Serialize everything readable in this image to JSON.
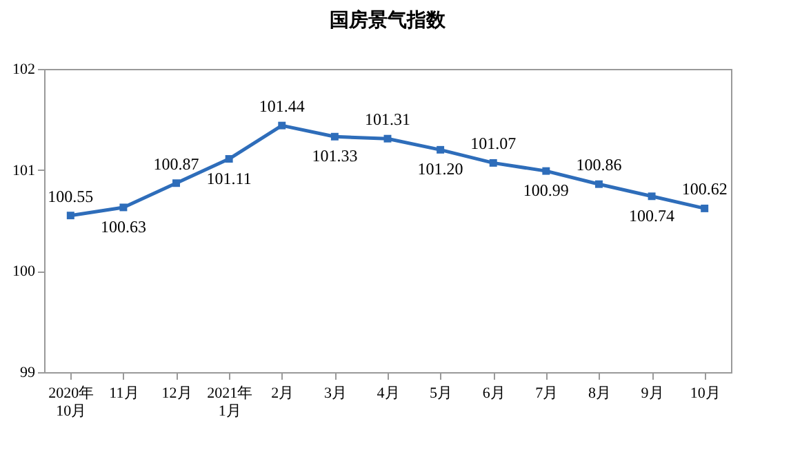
{
  "chart_data": {
    "type": "line",
    "title": "国房景气指数",
    "categories": [
      "2020年\n10月",
      "11月",
      "12月",
      "2021年\n1月",
      "2月",
      "3月",
      "4月",
      "5月",
      "6月",
      "7月",
      "8月",
      "9月",
      "10月"
    ],
    "series": [
      {
        "color": "#2e6dba",
        "values": [
          100.55,
          100.63,
          100.87,
          101.11,
          101.44,
          101.33,
          101.31,
          101.2,
          101.07,
          100.99,
          100.86,
          100.74,
          100.62
        ],
        "value_labels": [
          "100.55",
          "100.63",
          "100.87",
          "101.11",
          "101.44",
          "101.33",
          "101.31",
          "101.20",
          "101.07",
          "100.99",
          "100.86",
          "100.74",
          "100.62"
        ]
      }
    ],
    "ylim": [
      99,
      102
    ],
    "yticks": [
      99,
      100,
      101,
      102
    ],
    "grid": false,
    "marker": "square",
    "line_style": "solid"
  }
}
